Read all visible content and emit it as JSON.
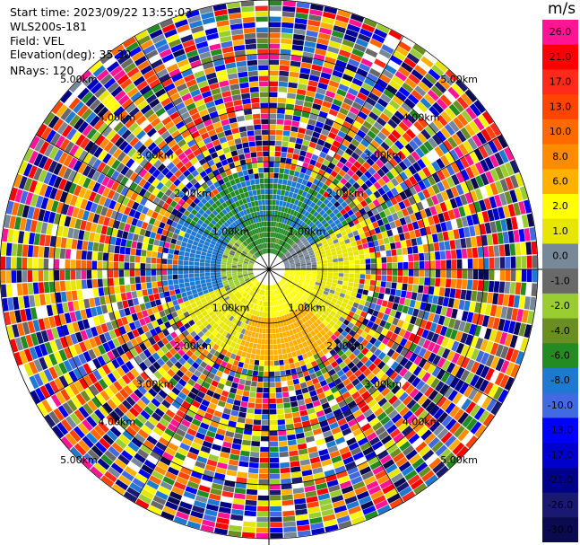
{
  "info": {
    "start_time": "Start time: 2023/09/22 13:55:03",
    "instrument": "WLS200s-181",
    "field": "Field: VEL",
    "elevation": "Elevation(deg): 35.30",
    "nrays": "NRays: 120"
  },
  "colorbar": {
    "unit": "m/s",
    "levels": [
      {
        "label": "26.0",
        "color": "#ff1493"
      },
      {
        "label": "21.0",
        "color": "#ff0000"
      },
      {
        "label": "17.0",
        "color": "#ff2a1a"
      },
      {
        "label": "13.0",
        "color": "#ff4500"
      },
      {
        "label": "10.0",
        "color": "#ff6a00"
      },
      {
        "label": "8.0",
        "color": "#ff8c00"
      },
      {
        "label": "6.0",
        "color": "#ffb000"
      },
      {
        "label": "2.0",
        "color": "#ffff00"
      },
      {
        "label": "1.0",
        "color": "#e6e600"
      },
      {
        "label": "0.0",
        "color": "#778899"
      },
      {
        "label": "-1.0",
        "color": "#696969"
      },
      {
        "label": "-2.0",
        "color": "#9acd32"
      },
      {
        "label": "-4.0",
        "color": "#6b8e23"
      },
      {
        "label": "-6.0",
        "color": "#228b22"
      },
      {
        "label": "-8.0",
        "color": "#1e7ad0"
      },
      {
        "label": "-10.0",
        "color": "#4169e1"
      },
      {
        "label": "-13.0",
        "color": "#0000ff"
      },
      {
        "label": "-17.0",
        "color": "#0000cd"
      },
      {
        "label": "-21.0",
        "color": "#00008b"
      },
      {
        "label": "-26.0",
        "color": "#191970"
      },
      {
        "label": "-30.0",
        "color": "#0a0a50"
      }
    ]
  },
  "chart_data": {
    "type": "heatmap",
    "projection": "polar-ppi",
    "field": "VEL",
    "unit": "m/s",
    "range_rings_km": [
      1,
      2,
      3,
      4,
      5
    ],
    "ring_labels": [
      "1.00km",
      "2.00km",
      "3.00km",
      "4.00km",
      "5.00km"
    ],
    "azimuth_lines_deg": [
      0,
      30,
      60,
      90,
      120,
      150,
      180,
      210,
      240,
      270,
      300,
      330
    ],
    "max_range_km": 5.0,
    "nrays": 120,
    "pattern": {
      "description_note": "",
      "coherent_range_km": 1.65,
      "sector_near": [
        {
          "az_from": 315,
          "az_to": 45,
          "value": -4.5
        },
        {
          "az_from": 45,
          "az_to": 90,
          "value": 0.3
        },
        {
          "az_from": 90,
          "az_to": 180,
          "value": 4.5
        },
        {
          "az_from": 180,
          "az_to": 240,
          "value": 2.0
        },
        {
          "az_from": 240,
          "az_to": 315,
          "value": -1.5
        }
      ],
      "sector_far": [
        {
          "az_from": 300,
          "az_to": 60,
          "value": -6.0
        },
        {
          "az_from": 60,
          "az_to": 135,
          "value": 1.5
        },
        {
          "az_from": 135,
          "az_to": 200,
          "value": 7.0
        },
        {
          "az_from": 200,
          "az_to": 250,
          "value": 1.5
        },
        {
          "az_from": 250,
          "az_to": 300,
          "value": -7.0
        }
      ]
    }
  }
}
